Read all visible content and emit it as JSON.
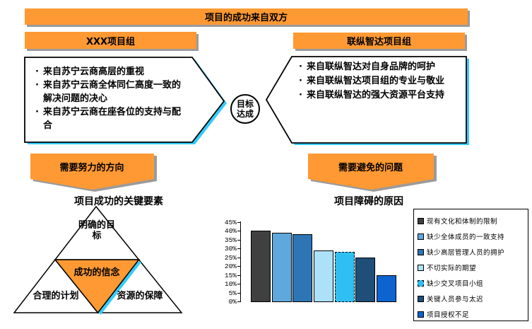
{
  "banner": {
    "title": "项目的成功来自双方"
  },
  "left_group": {
    "title": "XXX项目组",
    "bullets": [
      "来自苏宁云商高层的重视",
      "来自苏宁云商全体同仁高度一致的解决问题的决心",
      "来自苏宁云商在座各位的支持与配合"
    ]
  },
  "right_group": {
    "title": "联纵智达项目组",
    "bullets": [
      "来自联纵智达对自身品牌的呵护",
      "来自联纵智达项目组的专业与敬业",
      "来自联纵智达的强大资源平台支持"
    ]
  },
  "center": {
    "goal": "目标达成"
  },
  "left_arrow": {
    "label": "需要努力的方向"
  },
  "right_arrow": {
    "label": "需要避免的问题"
  },
  "pyramid": {
    "title": "项目成功的关键要素",
    "top": "明确的目标",
    "middle": "成功的信念",
    "left": "合理的计划",
    "right": "资源的保障"
  },
  "chart_data": {
    "type": "bar",
    "title": "项目障碍的原因",
    "categories": [
      "现有文化和体制的限制",
      "缺少全体成员的一致支持",
      "缺少高层管理人员的拥护",
      "不切实际的期望",
      "缺少交叉项目小组",
      "关键人员参与太迟",
      "项目授权不足"
    ],
    "values": [
      40,
      39,
      38,
      29,
      28,
      25,
      15
    ],
    "unit": "%",
    "ylim": [
      0,
      45
    ],
    "ytick_step": 5,
    "ytick_labels": [
      "0%",
      "5%",
      "10%",
      "15%",
      "20%",
      "25%",
      "30%",
      "35%",
      "40%",
      "45%"
    ],
    "colors": [
      "#404040",
      "#5FA8DC",
      "#2E75B6",
      "#ADE1F7",
      "#2FBFF2",
      "#1F4E79",
      "#0D64D0"
    ],
    "pattern_bar_index": 4,
    "grid": false,
    "legend_position": "right"
  },
  "colors": {
    "accent_orange": "#FF9933",
    "shape_shadow_cyan": "#33CCFF",
    "banner_shadow_gray": "#9B9B9B",
    "shape_border": "#000000"
  }
}
